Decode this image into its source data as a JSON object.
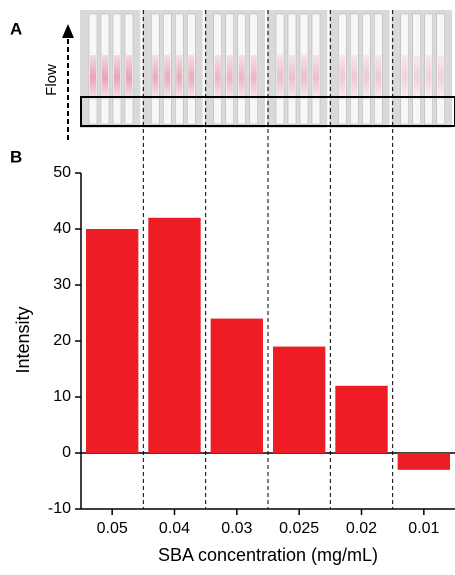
{
  "figure": {
    "panel_a_label": "A",
    "panel_b_label": "B",
    "flow_label": "Flow"
  },
  "chart_data": {
    "type": "bar",
    "xlabel": "SBA concentration (mg/mL)",
    "ylabel": "Intensity",
    "categories": [
      "0.05",
      "0.04",
      "0.03",
      "0.025",
      "0.02",
      "0.01"
    ],
    "values": [
      40,
      42,
      24,
      19,
      12,
      -3
    ],
    "color": "#ee1c25",
    "ylim": [
      -10,
      50
    ],
    "yticks": [
      -10,
      0,
      10,
      20,
      30,
      40,
      50
    ]
  }
}
